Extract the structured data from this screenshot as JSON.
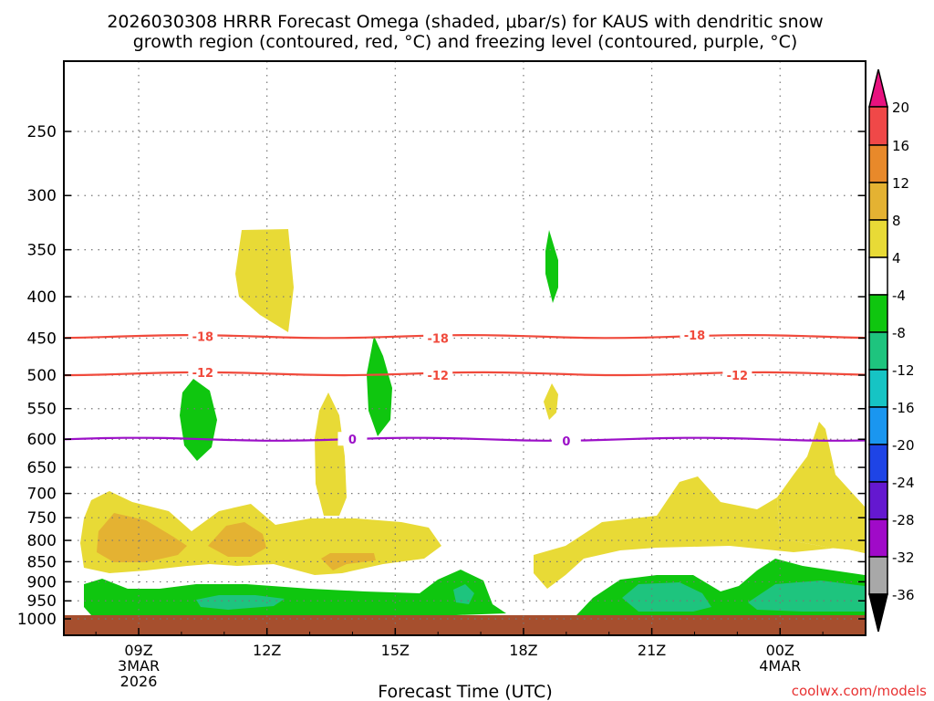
{
  "chart_data": {
    "type": "time-height cross section",
    "title_line1": "2026030308 HRRR Forecast Omega (shaded, μbar/s) for KAUS with dendritic snow",
    "title_line2": "growth region (contoured, red, °C) and freezing level (contoured, purple, °C)",
    "xlabel": "Forecast Time (UTC)",
    "credit": "coolwx.com/models",
    "x_ticks": [
      {
        "label": "09Z",
        "sub1": "3MAR",
        "sub2": "2026",
        "hour": 9
      },
      {
        "label": "12Z",
        "sub1": "",
        "sub2": "",
        "hour": 12
      },
      {
        "label": "15Z",
        "sub1": "",
        "sub2": "",
        "hour": 15
      },
      {
        "label": "18Z",
        "sub1": "",
        "sub2": "",
        "hour": 18
      },
      {
        "label": "21Z",
        "sub1": "",
        "sub2": "",
        "hour": 21
      },
      {
        "label": "00Z",
        "sub1": "4MAR",
        "sub2": "",
        "hour": 24
      }
    ],
    "x_range_hours": [
      7.25,
      26.0
    ],
    "y_ticks": [
      "250",
      "300",
      "350",
      "400",
      "450",
      "500",
      "550",
      "600",
      "650",
      "700",
      "750",
      "800",
      "850",
      "900",
      "950",
      "1000"
    ],
    "y_range_mb": [
      200,
      1000
    ],
    "colorbar": {
      "labels": [
        "20",
        "16",
        "12",
        "8",
        "4",
        "-4",
        "-8",
        "-12",
        "-16",
        "-20",
        "-24",
        "-28",
        "-32",
        "-36"
      ],
      "colors": [
        "#e8127f",
        "#f04848",
        "#e8892a",
        "#e4b232",
        "#e8da36",
        "#ffffff",
        "#0fc60f",
        "#1ec47e",
        "#16c4c4",
        "#1a96f0",
        "#1e44e6",
        "#6418d0",
        "#a00ac8",
        "#a8a8a8",
        "#000000"
      ]
    },
    "contours": [
      {
        "name": "dgz-upper",
        "value": "-18",
        "color": "#f04a3c",
        "level_mb": 448
      },
      {
        "name": "dgz-lower",
        "value": "-12",
        "color": "#f04a3c",
        "level_mb": 498
      },
      {
        "name": "freezing-level",
        "value": "0",
        "color": "#9c10c8",
        "level_mb": 600
      }
    ],
    "contour_labels": [
      {
        "value": "-18",
        "hour": 10.5,
        "mb": 448
      },
      {
        "value": "-18",
        "hour": 16.0,
        "mb": 450
      },
      {
        "value": "-18",
        "hour": 22.0,
        "mb": 446
      },
      {
        "value": "-12",
        "hour": 10.5,
        "mb": 496
      },
      {
        "value": "-12",
        "hour": 16.0,
        "mb": 500
      },
      {
        "value": "-12",
        "hour": 23.0,
        "mb": 500
      },
      {
        "value": "0",
        "hour": 14.0,
        "mb": 600
      },
      {
        "value": "0",
        "hour": 19.0,
        "mb": 603
      }
    ]
  }
}
